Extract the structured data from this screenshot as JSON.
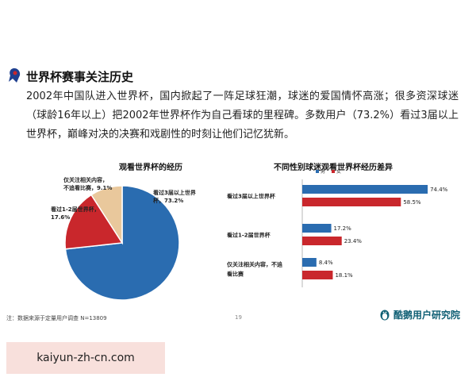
{
  "section_title": "世界杯赛事关注历史",
  "intro_text": "2002年中国队进入世界杯，国内掀起了一阵足球狂潮，球迷的爱国情怀高涨；很多资深球迷（球龄16年以上）把2002年世界杯作为自己看球的里程碑。多数用户（73.2%）看过3届以上世界杯，巅峰对决的决赛和戏剧性的时刻让他们记忆犹新。",
  "footnote": "注：数据来源于定量用户调查 N=13809",
  "page_number": "19",
  "brand_name": "酷鹅用户研究院",
  "watermark_url": "kaiyun-zh-cn.com",
  "colors": {
    "blue": "#2a6cb0",
    "red": "#c9272c",
    "tan": "#e9c89c",
    "brand": "#0f5f74"
  },
  "chart_data": [
    {
      "type": "pie",
      "title": "观看世界杯的经历",
      "slices": [
        {
          "label_lines": [
            "看过3届以上世界",
            "杯，73.2%"
          ],
          "value": 73.2,
          "color": "#2a6cb0"
        },
        {
          "label_lines": [
            "看过1-2届世界杯，",
            "17.6%"
          ],
          "value": 17.6,
          "color": "#c9272c"
        },
        {
          "label_lines": [
            "仅关注相关内容，",
            "不追看比赛，9.1%"
          ],
          "value": 9.1,
          "color": "#e9c89c"
        }
      ]
    },
    {
      "type": "bar",
      "orientation": "horizontal",
      "title": "不同性别球迷观看世界杯经历差异",
      "legend": [
        "男",
        "女"
      ],
      "categories": [
        [
          "看过3届以上世界杯"
        ],
        [
          "看过1-2届世界杯"
        ],
        [
          "仅关注相关内容，不追",
          "看比赛"
        ]
      ],
      "series": [
        {
          "name": "男",
          "values": [
            74.4,
            17.2,
            8.4
          ],
          "labels": [
            "74.4%",
            "17.2%",
            "8.4%"
          ],
          "color": "#2a6cb0"
        },
        {
          "name": "女",
          "values": [
            58.5,
            23.4,
            18.1
          ],
          "labels": [
            "58.5%",
            "23.4%",
            "18.1%"
          ],
          "color": "#c9272c"
        }
      ],
      "xlim": [
        0,
        80
      ]
    }
  ]
}
